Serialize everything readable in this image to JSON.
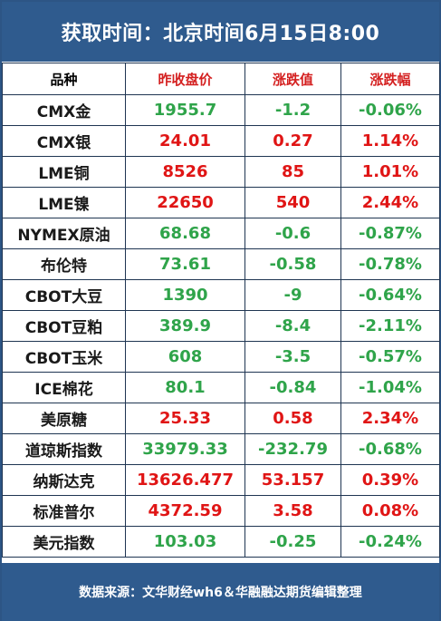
{
  "title": "获取时间：北京时间6月15日8:00",
  "headers": {
    "name": "品种",
    "prev": "昨收盘价",
    "change": "涨跌值",
    "pct": "涨跌幅"
  },
  "rows": [
    {
      "name": "CMX金",
      "prev": "1955.7",
      "change": "-1.2",
      "pct": "-0.06%",
      "dir": "down",
      "prev_dir": "down"
    },
    {
      "name": "CMX银",
      "prev": "24.01",
      "change": "0.27",
      "pct": "1.14%",
      "dir": "up",
      "prev_dir": "up"
    },
    {
      "name": "LME铜",
      "prev": "8526",
      "change": "85",
      "pct": "1.01%",
      "dir": "up",
      "prev_dir": "up"
    },
    {
      "name": "LME镍",
      "prev": "22650",
      "change": "540",
      "pct": "2.44%",
      "dir": "up",
      "prev_dir": "up"
    },
    {
      "name": "NYMEX原油",
      "prev": "68.68",
      "change": "-0.6",
      "pct": "-0.87%",
      "dir": "down",
      "prev_dir": "down"
    },
    {
      "name": "布伦特",
      "prev": "73.61",
      "change": "-0.58",
      "pct": "-0.78%",
      "dir": "down",
      "prev_dir": "down"
    },
    {
      "name": "CBOT大豆",
      "prev": "1390",
      "change": "-9",
      "pct": "-0.64%",
      "dir": "down",
      "prev_dir": "down"
    },
    {
      "name": "CBOT豆粕",
      "prev": "389.9",
      "change": "-8.4",
      "pct": "-2.11%",
      "dir": "down",
      "prev_dir": "down"
    },
    {
      "name": "CBOT玉米",
      "prev": "608",
      "change": "-3.5",
      "pct": "-0.57%",
      "dir": "down",
      "prev_dir": "down"
    },
    {
      "name": "ICE棉花",
      "prev": "80.1",
      "change": "-0.84",
      "pct": "-1.04%",
      "dir": "down",
      "prev_dir": "down"
    },
    {
      "name": "美原糖",
      "prev": "25.33",
      "change": "0.58",
      "pct": "2.34%",
      "dir": "up",
      "prev_dir": "up"
    },
    {
      "name": "道琼斯指数",
      "prev": "33979.33",
      "change": "-232.79",
      "pct": "-0.68%",
      "dir": "down",
      "prev_dir": "down"
    },
    {
      "name": "纳斯达克",
      "prev": "13626.477",
      "change": "53.157",
      "pct": "0.39%",
      "dir": "up",
      "prev_dir": "up"
    },
    {
      "name": "标准普尔",
      "prev": "4372.59",
      "change": "3.58",
      "pct": "0.08%",
      "dir": "up",
      "prev_dir": "up"
    },
    {
      "name": "美元指数",
      "prev": "103.03",
      "change": "-0.25",
      "pct": "-0.24%",
      "dir": "down",
      "prev_dir": "down"
    }
  ],
  "footer": "数据来源：文华财经wh6＆华融融达期货编辑整理",
  "colors": {
    "header_bg": "#2f5b8e",
    "up": "#e01515",
    "down": "#2fa44a"
  }
}
